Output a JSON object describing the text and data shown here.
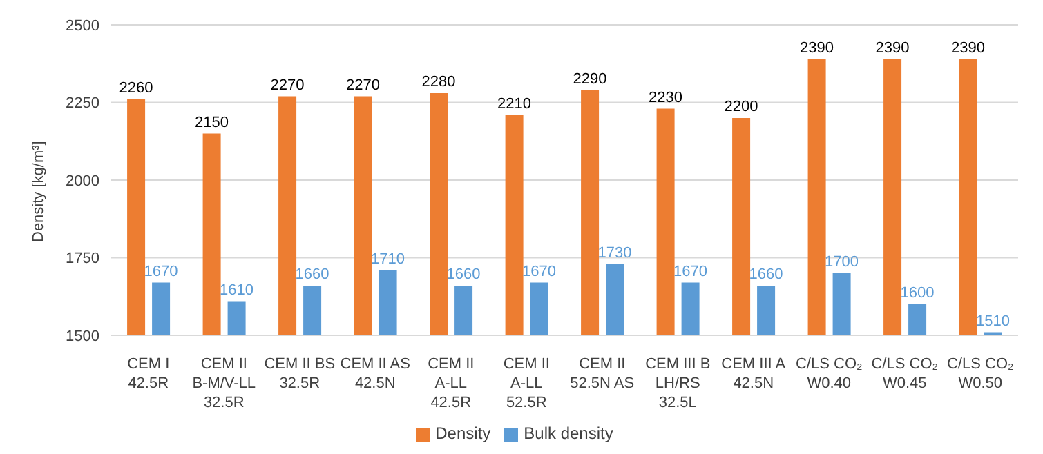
{
  "chart_data": {
    "type": "bar",
    "ylabel": "Density [kg/m³]",
    "categories": [
      "CEM I 42.5R",
      "CEM II B-M/V-LL 32.5R",
      "CEM II BS 32.5R",
      "CEM II AS 42.5N",
      "CEM II A-LL 42.5R",
      "CEM II A-LL 52.5R",
      "CEM II 52.5N AS",
      "CEM III B LH/RS 32.5L",
      "CEM III A 42.5N",
      "C/LS CO₂ W0.40",
      "C/LS CO₂ W0.45",
      "C/LS CO₂ W0.50"
    ],
    "series": [
      {
        "name": "Density",
        "color": "#ed7d31",
        "values": [
          2260,
          2150,
          2270,
          2270,
          2280,
          2210,
          2290,
          2230,
          2200,
          2390,
          2390,
          2390
        ]
      },
      {
        "name": "Bulk density",
        "color": "#5b9bd5",
        "values": [
          1670,
          1610,
          1660,
          1710,
          1660,
          1670,
          1730,
          1670,
          1660,
          1700,
          1600,
          1510
        ]
      }
    ],
    "ylim": [
      1500,
      2500
    ],
    "yticks": [
      1500,
      1750,
      2000,
      2250,
      2500
    ],
    "grid": "y",
    "legend": "bottom",
    "data_labels": true
  }
}
